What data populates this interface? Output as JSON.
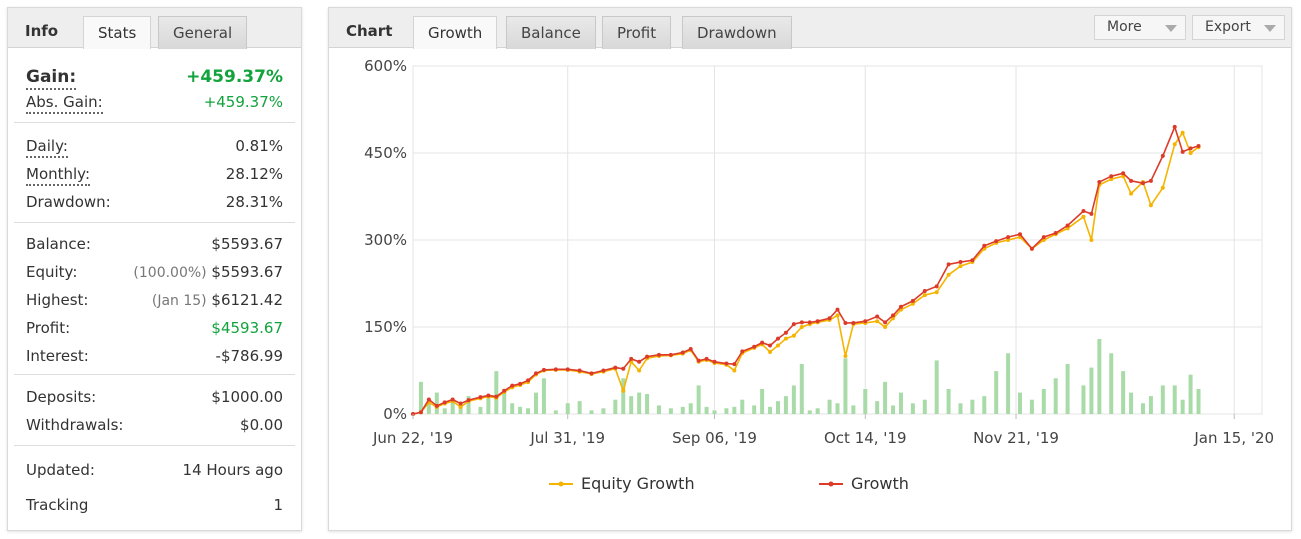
{
  "info": {
    "tab_title": "Info",
    "tabs": [
      {
        "label": "Stats",
        "active": true
      },
      {
        "label": "General",
        "active": false
      }
    ],
    "gain": {
      "label": "Gain:",
      "value": "+459.37%"
    },
    "abs_gain": {
      "label": "Abs. Gain:",
      "value": "+459.37%"
    },
    "daily": {
      "label": "Daily:",
      "value": "0.81%"
    },
    "monthly": {
      "label": "Monthly:",
      "value": "28.12%"
    },
    "drawdown": {
      "label": "Drawdown:",
      "value": "28.31%"
    },
    "balance": {
      "label": "Balance:",
      "value": "$5593.67"
    },
    "equity": {
      "label": "Equity:",
      "note": "(100.00%)",
      "value": "$5593.67"
    },
    "highest": {
      "label": "Highest:",
      "note": "(Jan 15)",
      "value": "$6121.42"
    },
    "profit": {
      "label": "Profit:",
      "value": "$4593.67"
    },
    "interest": {
      "label": "Interest:",
      "value": "-$786.99"
    },
    "deposits": {
      "label": "Deposits:",
      "value": "$1000.00"
    },
    "withdrawals": {
      "label": "Withdrawals:",
      "value": "$0.00"
    },
    "updated": {
      "label": "Updated:",
      "value": "14 Hours ago"
    },
    "tracking": {
      "label": "Tracking",
      "value": "1"
    }
  },
  "chart_panel": {
    "tab_title": "Chart",
    "tabs": [
      {
        "label": "Growth",
        "active": true
      },
      {
        "label": "Balance",
        "active": false
      },
      {
        "label": "Profit",
        "active": false
      },
      {
        "label": "Drawdown",
        "active": false
      }
    ],
    "more_label": "More",
    "export_label": "Export"
  },
  "colors": {
    "growth": "#dd3b2a",
    "equity": "#f4b400",
    "bars": "#a8dba8",
    "gain_green": "#12a33c"
  },
  "chart_data": {
    "type": "line",
    "ylim": [
      0,
      600
    ],
    "yticks": [
      "0%",
      "150%",
      "300%",
      "450%",
      "600%"
    ],
    "ytick_values": [
      0,
      150,
      300,
      450,
      600
    ],
    "x_range": [
      "2019-06-22",
      "2020-01-22"
    ],
    "xticks": [
      {
        "label": "Jun 22, '19",
        "date": "2019-06-22"
      },
      {
        "label": "Jul 31, '19",
        "date": "2019-07-31"
      },
      {
        "label": "Sep 06, '19",
        "date": "2019-09-06"
      },
      {
        "label": "Oct 14, '19",
        "date": "2019-10-14"
      },
      {
        "label": "Nov 21, '19",
        "date": "2019-11-21"
      },
      {
        "label": "Jan 15, '20",
        "date": "2020-01-15"
      }
    ],
    "grid": true,
    "legend_position": "bottom",
    "series": [
      {
        "name": "Equity Growth",
        "color": "#f4b400",
        "points": [
          [
            "2019-06-22",
            0
          ],
          [
            "2019-06-24",
            3
          ],
          [
            "2019-06-26",
            20
          ],
          [
            "2019-06-28",
            12
          ],
          [
            "2019-06-30",
            18
          ],
          [
            "2019-07-02",
            22
          ],
          [
            "2019-07-04",
            12
          ],
          [
            "2019-07-06",
            22
          ],
          [
            "2019-07-09",
            27
          ],
          [
            "2019-07-11",
            30
          ],
          [
            "2019-07-13",
            28
          ],
          [
            "2019-07-15",
            38
          ],
          [
            "2019-07-17",
            46
          ],
          [
            "2019-07-19",
            50
          ],
          [
            "2019-07-21",
            55
          ],
          [
            "2019-07-23",
            68
          ],
          [
            "2019-07-25",
            75
          ],
          [
            "2019-07-28",
            76
          ],
          [
            "2019-07-31",
            76
          ],
          [
            "2019-08-03",
            73
          ],
          [
            "2019-08-06",
            69
          ],
          [
            "2019-08-09",
            73
          ],
          [
            "2019-08-12",
            78
          ],
          [
            "2019-08-14",
            40
          ],
          [
            "2019-08-16",
            90
          ],
          [
            "2019-08-18",
            75
          ],
          [
            "2019-08-20",
            96
          ],
          [
            "2019-08-23",
            100
          ],
          [
            "2019-08-26",
            101
          ],
          [
            "2019-08-29",
            104
          ],
          [
            "2019-08-31",
            110
          ],
          [
            "2019-09-02",
            90
          ],
          [
            "2019-09-04",
            93
          ],
          [
            "2019-09-06",
            88
          ],
          [
            "2019-09-09",
            85
          ],
          [
            "2019-09-11",
            75
          ],
          [
            "2019-09-13",
            105
          ],
          [
            "2019-09-16",
            114
          ],
          [
            "2019-09-18",
            120
          ],
          [
            "2019-09-20",
            107
          ],
          [
            "2019-09-22",
            118
          ],
          [
            "2019-09-24",
            130
          ],
          [
            "2019-09-26",
            135
          ],
          [
            "2019-09-28",
            150
          ],
          [
            "2019-09-30",
            155
          ],
          [
            "2019-10-02",
            158
          ],
          [
            "2019-10-05",
            162
          ],
          [
            "2019-10-07",
            170
          ],
          [
            "2019-10-09",
            100
          ],
          [
            "2019-10-11",
            155
          ],
          [
            "2019-10-14",
            157
          ],
          [
            "2019-10-17",
            160
          ],
          [
            "2019-10-19",
            150
          ],
          [
            "2019-10-21",
            165
          ],
          [
            "2019-10-23",
            180
          ],
          [
            "2019-10-26",
            190
          ],
          [
            "2019-10-29",
            205
          ],
          [
            "2019-11-01",
            210
          ],
          [
            "2019-11-04",
            240
          ],
          [
            "2019-11-07",
            255
          ],
          [
            "2019-11-10",
            262
          ],
          [
            "2019-11-13",
            285
          ],
          [
            "2019-11-16",
            295
          ],
          [
            "2019-11-19",
            300
          ],
          [
            "2019-11-22",
            305
          ],
          [
            "2019-11-25",
            285
          ],
          [
            "2019-11-28",
            300
          ],
          [
            "2019-12-01",
            310
          ],
          [
            "2019-12-04",
            320
          ],
          [
            "2019-12-08",
            340
          ],
          [
            "2019-12-10",
            300
          ],
          [
            "2019-12-12",
            395
          ],
          [
            "2019-12-15",
            405
          ],
          [
            "2019-12-18",
            410
          ],
          [
            "2019-12-20",
            380
          ],
          [
            "2019-12-23",
            400
          ],
          [
            "2019-12-25",
            360
          ],
          [
            "2019-12-28",
            390
          ],
          [
            "2019-12-31",
            465
          ],
          [
            "2020-01-02",
            485
          ],
          [
            "2020-01-04",
            450
          ],
          [
            "2020-01-06",
            460
          ]
        ]
      },
      {
        "name": "Growth",
        "color": "#dd3b2a",
        "points": [
          [
            "2019-06-22",
            0
          ],
          [
            "2019-06-24",
            3
          ],
          [
            "2019-06-26",
            25
          ],
          [
            "2019-06-28",
            14
          ],
          [
            "2019-06-30",
            20
          ],
          [
            "2019-07-02",
            25
          ],
          [
            "2019-07-04",
            18
          ],
          [
            "2019-07-06",
            24
          ],
          [
            "2019-07-09",
            29
          ],
          [
            "2019-07-11",
            32
          ],
          [
            "2019-07-13",
            30
          ],
          [
            "2019-07-15",
            40
          ],
          [
            "2019-07-17",
            49
          ],
          [
            "2019-07-19",
            52
          ],
          [
            "2019-07-21",
            58
          ],
          [
            "2019-07-23",
            70
          ],
          [
            "2019-07-25",
            76
          ],
          [
            "2019-07-28",
            77
          ],
          [
            "2019-07-31",
            77
          ],
          [
            "2019-08-03",
            75
          ],
          [
            "2019-08-06",
            70
          ],
          [
            "2019-08-09",
            75
          ],
          [
            "2019-08-12",
            80
          ],
          [
            "2019-08-14",
            78
          ],
          [
            "2019-08-16",
            95
          ],
          [
            "2019-08-18",
            90
          ],
          [
            "2019-08-20",
            99
          ],
          [
            "2019-08-23",
            102
          ],
          [
            "2019-08-26",
            102
          ],
          [
            "2019-08-29",
            106
          ],
          [
            "2019-08-31",
            112
          ],
          [
            "2019-09-02",
            92
          ],
          [
            "2019-09-04",
            95
          ],
          [
            "2019-09-06",
            90
          ],
          [
            "2019-09-09",
            87
          ],
          [
            "2019-09-11",
            86
          ],
          [
            "2019-09-13",
            108
          ],
          [
            "2019-09-16",
            116
          ],
          [
            "2019-09-18",
            123
          ],
          [
            "2019-09-20",
            118
          ],
          [
            "2019-09-22",
            130
          ],
          [
            "2019-09-24",
            140
          ],
          [
            "2019-09-26",
            155
          ],
          [
            "2019-09-28",
            158
          ],
          [
            "2019-09-30",
            158
          ],
          [
            "2019-10-02",
            160
          ],
          [
            "2019-10-05",
            165
          ],
          [
            "2019-10-07",
            180
          ],
          [
            "2019-10-09",
            157
          ],
          [
            "2019-10-11",
            157
          ],
          [
            "2019-10-14",
            160
          ],
          [
            "2019-10-17",
            168
          ],
          [
            "2019-10-19",
            158
          ],
          [
            "2019-10-21",
            170
          ],
          [
            "2019-10-23",
            185
          ],
          [
            "2019-10-26",
            195
          ],
          [
            "2019-10-29",
            212
          ],
          [
            "2019-11-01",
            220
          ],
          [
            "2019-11-04",
            258
          ],
          [
            "2019-11-07",
            262
          ],
          [
            "2019-11-10",
            265
          ],
          [
            "2019-11-13",
            290
          ],
          [
            "2019-11-16",
            298
          ],
          [
            "2019-11-19",
            305
          ],
          [
            "2019-11-22",
            310
          ],
          [
            "2019-11-25",
            285
          ],
          [
            "2019-11-28",
            305
          ],
          [
            "2019-12-01",
            312
          ],
          [
            "2019-12-04",
            325
          ],
          [
            "2019-12-08",
            350
          ],
          [
            "2019-12-10",
            345
          ],
          [
            "2019-12-12",
            400
          ],
          [
            "2019-12-15",
            410
          ],
          [
            "2019-12-18",
            415
          ],
          [
            "2019-12-20",
            402
          ],
          [
            "2019-12-23",
            398
          ],
          [
            "2019-12-25",
            402
          ],
          [
            "2019-12-28",
            445
          ],
          [
            "2019-12-31",
            495
          ],
          [
            "2020-01-02",
            452
          ],
          [
            "2020-01-04",
            458
          ],
          [
            "2020-01-06",
            462
          ]
        ]
      }
    ],
    "volume_bars": [
      [
        "2019-06-24",
        45
      ],
      [
        "2019-06-26",
        15
      ],
      [
        "2019-06-28",
        30
      ],
      [
        "2019-06-30",
        8
      ],
      [
        "2019-07-02",
        20
      ],
      [
        "2019-07-04",
        12
      ],
      [
        "2019-07-06",
        25
      ],
      [
        "2019-07-09",
        10
      ],
      [
        "2019-07-11",
        22
      ],
      [
        "2019-07-13",
        60
      ],
      [
        "2019-07-15",
        35
      ],
      [
        "2019-07-17",
        15
      ],
      [
        "2019-07-19",
        10
      ],
      [
        "2019-07-21",
        8
      ],
      [
        "2019-07-23",
        30
      ],
      [
        "2019-07-25",
        50
      ],
      [
        "2019-07-28",
        5
      ],
      [
        "2019-07-31",
        15
      ],
      [
        "2019-08-03",
        18
      ],
      [
        "2019-08-06",
        5
      ],
      [
        "2019-08-09",
        8
      ],
      [
        "2019-08-12",
        20
      ],
      [
        "2019-08-14",
        50
      ],
      [
        "2019-08-16",
        25
      ],
      [
        "2019-08-18",
        30
      ],
      [
        "2019-08-20",
        28
      ],
      [
        "2019-08-23",
        12
      ],
      [
        "2019-08-26",
        8
      ],
      [
        "2019-08-29",
        10
      ],
      [
        "2019-08-31",
        15
      ],
      [
        "2019-09-02",
        40
      ],
      [
        "2019-09-04",
        10
      ],
      [
        "2019-09-06",
        5
      ],
      [
        "2019-09-09",
        8
      ],
      [
        "2019-09-11",
        10
      ],
      [
        "2019-09-13",
        20
      ],
      [
        "2019-09-16",
        12
      ],
      [
        "2019-09-18",
        35
      ],
      [
        "2019-09-20",
        10
      ],
      [
        "2019-09-22",
        18
      ],
      [
        "2019-09-24",
        25
      ],
      [
        "2019-09-26",
        40
      ],
      [
        "2019-09-28",
        70
      ],
      [
        "2019-09-30",
        5
      ],
      [
        "2019-10-02",
        8
      ],
      [
        "2019-10-05",
        20
      ],
      [
        "2019-10-07",
        15
      ],
      [
        "2019-10-09",
        78
      ],
      [
        "2019-10-11",
        12
      ],
      [
        "2019-10-14",
        35
      ],
      [
        "2019-10-17",
        18
      ],
      [
        "2019-10-19",
        45
      ],
      [
        "2019-10-21",
        12
      ],
      [
        "2019-10-23",
        30
      ],
      [
        "2019-10-26",
        15
      ],
      [
        "2019-10-29",
        20
      ],
      [
        "2019-11-01",
        75
      ],
      [
        "2019-11-04",
        35
      ],
      [
        "2019-11-07",
        15
      ],
      [
        "2019-11-10",
        20
      ],
      [
        "2019-11-13",
        25
      ],
      [
        "2019-11-16",
        60
      ],
      [
        "2019-11-19",
        85
      ],
      [
        "2019-11-22",
        30
      ],
      [
        "2019-11-25",
        20
      ],
      [
        "2019-11-28",
        35
      ],
      [
        "2019-12-01",
        50
      ],
      [
        "2019-12-04",
        70
      ],
      [
        "2019-12-08",
        40
      ],
      [
        "2019-12-10",
        65
      ],
      [
        "2019-12-12",
        105
      ],
      [
        "2019-12-15",
        85
      ],
      [
        "2019-12-18",
        60
      ],
      [
        "2019-12-20",
        30
      ],
      [
        "2019-12-23",
        15
      ],
      [
        "2019-12-25",
        25
      ],
      [
        "2019-12-28",
        40
      ],
      [
        "2019-12-31",
        40
      ],
      [
        "2020-01-02",
        20
      ],
      [
        "2020-01-04",
        55
      ],
      [
        "2020-01-06",
        35
      ]
    ]
  }
}
